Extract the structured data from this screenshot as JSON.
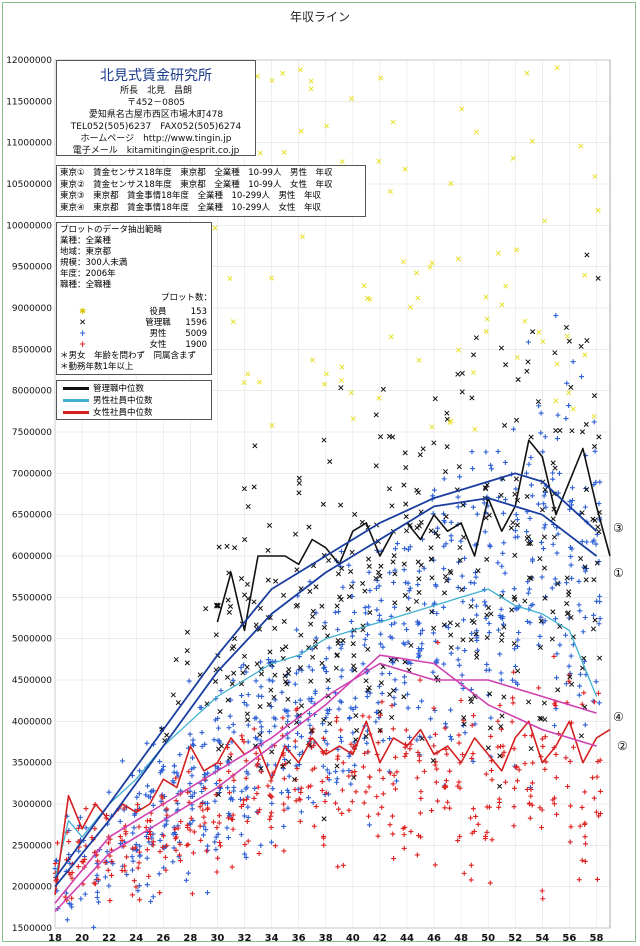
{
  "title": "年収ライン",
  "info": {
    "org": "北見式賃金研究所",
    "director": "所長　北見　昌朗",
    "zip": "〒452－0805",
    "address": "愛知県名古屋市西区市場木町478",
    "tel": "TEL052(505)6237　FAX052(505)6274",
    "web": "ホームページ　http://www.tingin.jp",
    "mail": "電子メール　kitamitingin@esprit.co.jp"
  },
  "sources": [
    "東京①　賃金センサス18年度　東京都　全業種　10-99人　男性　年収",
    "東京②　賃金センサス18年度　東京都　全業種　10-99人　女性　年収",
    "東京③　東京都　賃金事情18年度　全業種　10-299人　男性　年収",
    "東京④　東京都　賃金事情18年度　全業種　10-299人　女性　年収"
  ],
  "plot_info": {
    "heading": "プロットのデータ抽出範疇",
    "lines": [
      "業種：全業種",
      "地域：東京都",
      "規模：300人未満",
      "年度：2006年",
      "職種：全職種"
    ],
    "count_heading": "プロット数：",
    "counts": [
      {
        "label": "役員",
        "value": "153"
      },
      {
        "label": "管理職",
        "value": "1596"
      },
      {
        "label": "男性",
        "value": "5009"
      },
      {
        "label": "女性",
        "value": "1900"
      }
    ],
    "notes": [
      "＊男女　年齢を問わず　同属含まず",
      "＊勤務年数1年以上"
    ]
  },
  "legend": [
    {
      "label": "管理職中位数",
      "color": "#111111"
    },
    {
      "label": "男性社員中位数",
      "color": "#3fb0cf"
    },
    {
      "label": "女性社員中位数",
      "color": "#d42020"
    }
  ],
  "callouts": [
    {
      "label": "③",
      "series": "東京③"
    },
    {
      "label": "①",
      "series": "東京①"
    },
    {
      "label": "④",
      "series": "東京④"
    },
    {
      "label": "②",
      "series": "東京②"
    }
  ],
  "colors": {
    "executive": "#e8e030",
    "manager": "#111111",
    "male": "#2d5fd6",
    "female": "#e02020",
    "census": "#1a3ea0",
    "female_census": "#d040b0"
  },
  "chart_data": {
    "type": "line",
    "title": "年収ライン",
    "xlabel": "",
    "ylabel": "",
    "xlim": [
      18,
      59
    ],
    "ylim": [
      1500000,
      12000000
    ],
    "x_ticks": [
      18,
      20,
      22,
      24,
      26,
      28,
      30,
      32,
      34,
      36,
      38,
      40,
      42,
      44,
      46,
      48,
      50,
      52,
      54,
      56,
      58
    ],
    "y_ticks": [
      1500000,
      2000000,
      2500000,
      3000000,
      3500000,
      4000000,
      4500000,
      5000000,
      5500000,
      6000000,
      6500000,
      7000000,
      7500000,
      8000000,
      8500000,
      9000000,
      9500000,
      10000000,
      10500000,
      11000000,
      11500000,
      12000000
    ],
    "grid": true,
    "series": [
      {
        "name": "管理職中位数",
        "color": "#111111",
        "x": [
          30,
          31,
          32,
          33,
          34,
          35,
          36,
          37,
          38,
          39,
          40,
          41,
          42,
          43,
          44,
          45,
          46,
          47,
          48,
          49,
          50,
          51,
          52,
          53,
          54,
          55,
          56,
          57,
          58,
          59
        ],
        "y": [
          5200000,
          5800000,
          5100000,
          6000000,
          6000000,
          6000000,
          5900000,
          6200000,
          6100000,
          5900000,
          6300000,
          6400000,
          6000000,
          6300000,
          6400000,
          6200000,
          6500000,
          6300000,
          6400000,
          6000000,
          6700000,
          6300000,
          6600000,
          7400000,
          7200000,
          6500000,
          6900000,
          7300000,
          6600000,
          6000000
        ]
      },
      {
        "name": "男性社員中位数",
        "color": "#3fb0cf",
        "x": [
          18,
          19,
          20,
          22,
          24,
          26,
          28,
          30,
          32,
          34,
          36,
          38,
          40,
          42,
          44,
          46,
          48,
          50,
          52,
          54,
          56,
          58
        ],
        "y": [
          2100000,
          2800000,
          2600000,
          3000000,
          3300000,
          3700000,
          4000000,
          4300000,
          4500000,
          4700000,
          4800000,
          5000000,
          5100000,
          5200000,
          5300000,
          5400000,
          5500000,
          5600000,
          5400000,
          5300000,
          5100000,
          4300000
        ]
      },
      {
        "name": "女性社員中位数",
        "color": "#d42020",
        "x": [
          18,
          19,
          20,
          21,
          22,
          23,
          24,
          25,
          26,
          27,
          28,
          29,
          30,
          31,
          32,
          33,
          34,
          35,
          36,
          37,
          38,
          39,
          40,
          41,
          42,
          43,
          44,
          45,
          46,
          47,
          48,
          49,
          50,
          51,
          52,
          53,
          54,
          55,
          56,
          57,
          58,
          59
        ],
        "y": [
          1900000,
          3100000,
          2700000,
          3000000,
          2800000,
          3000000,
          2900000,
          3000000,
          3300000,
          3200000,
          3700000,
          3400000,
          3500000,
          3800000,
          3600000,
          3700000,
          3300000,
          3700000,
          3500000,
          3800000,
          3600000,
          3700000,
          3600000,
          4000000,
          3500000,
          3800000,
          3700000,
          3900000,
          3600000,
          3700000,
          3500000,
          3800000,
          3600000,
          3400000,
          3800000,
          4000000,
          3500000,
          3700000,
          4000000,
          3500000,
          3800000,
          3900000
        ]
      },
      {
        "name": "東京①",
        "color": "#1a3ea0",
        "x": [
          18,
          22,
          26,
          30,
          34,
          38,
          42,
          46,
          50,
          54,
          58
        ],
        "y": [
          2000000,
          2800000,
          3700000,
          4600000,
          5300000,
          5800000,
          6200000,
          6600000,
          6700000,
          6500000,
          6000000
        ]
      },
      {
        "name": "東京③",
        "color": "#1a3ea0",
        "x": [
          18,
          22,
          26,
          30,
          34,
          38,
          42,
          46,
          50,
          52,
          54,
          58
        ],
        "y": [
          2100000,
          3000000,
          3900000,
          4800000,
          5600000,
          6000000,
          6400000,
          6700000,
          6900000,
          7000000,
          6900000,
          6300000
        ]
      },
      {
        "name": "東京②",
        "color": "#d040b0",
        "x": [
          18,
          22,
          26,
          30,
          34,
          38,
          42,
          46,
          50,
          54,
          58
        ],
        "y": [
          1800000,
          2600000,
          3000000,
          3400000,
          3800000,
          4300000,
          4700000,
          4500000,
          4500000,
          4300000,
          4100000
        ]
      },
      {
        "name": "東京④",
        "color": "#d040b0",
        "x": [
          18,
          22,
          26,
          30,
          34,
          38,
          42,
          46,
          50,
          54,
          58
        ],
        "y": [
          1700000,
          2400000,
          2800000,
          3200000,
          3700000,
          4200000,
          4800000,
          4700000,
          4200000,
          3900000,
          3700000
        ]
      }
    ]
  }
}
